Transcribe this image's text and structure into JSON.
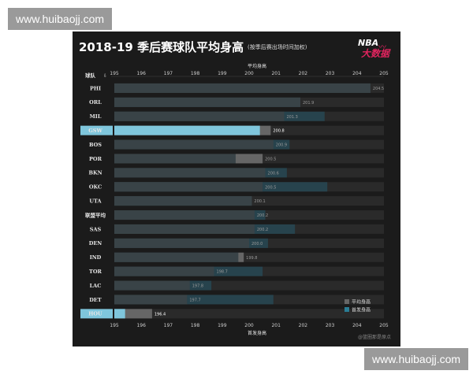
{
  "watermark_top": "www.huibaojj.com",
  "watermark_bottom": "www.huibaojj.com",
  "chart_data": {
    "type": "bar",
    "title": "2018-19 季后赛球队平均身高",
    "subtitle": "(按季后赛出场时间加权)",
    "xlabel": "首发身高",
    "xlabel_top": "平均身高",
    "ylabel": "球队",
    "xlim": [
      195,
      205
    ],
    "xticks": [
      195,
      196,
      197,
      198,
      199,
      200,
      201,
      202,
      203,
      204,
      205
    ],
    "categories": [
      "PHI",
      "ORL",
      "MIL",
      "GSW",
      "BOS",
      "POR",
      "BKN",
      "OKC",
      "UTA",
      "联盟平均",
      "SAS",
      "DEN",
      "IND",
      "TOR",
      "LAC",
      "DET",
      "HOU"
    ],
    "highlight": [
      "GSW",
      "HOU"
    ],
    "series": [
      {
        "name": "平均身高",
        "values": [
          204.5,
          201.9,
          201.3,
          200.8,
          200.9,
          200.5,
          200.6,
          200.5,
          200.1,
          200.2,
          200.2,
          200.0,
          199.8,
          198.7,
          197.8,
          197.7,
          196.4
        ]
      },
      {
        "name": "首发身高",
        "values": [
          204.5,
          201.9,
          202.8,
          200.4,
          201.5,
          199.5,
          201.4,
          202.9,
          200.1,
          200.6,
          201.7,
          200.7,
          199.6,
          200.5,
          198.6,
          200.9,
          195.4
        ]
      }
    ],
    "data_labels": [
      "204.5",
      "201.9",
      "201.3",
      "200.8",
      "200.9",
      "200.5",
      "200.6",
      "200.5",
      "200.1",
      "200.2",
      "200.2",
      "200.0",
      "199.8",
      "198.7",
      "197.8",
      "197.7",
      "196.4"
    ],
    "legend": {
      "position": "bottom-right",
      "entries": [
        "平均身高",
        "首发身高"
      ]
    },
    "colors": {
      "avg": "#666666",
      "starter": "#27434d",
      "highlight": "#7fc6dc",
      "background": "#1b1b1b",
      "row": "#2a2a2a"
    },
    "grid": false
  },
  "logo": {
    "line1": "NBA",
    "line2": "大数据"
  },
  "credit": "@篮圈那是原点"
}
